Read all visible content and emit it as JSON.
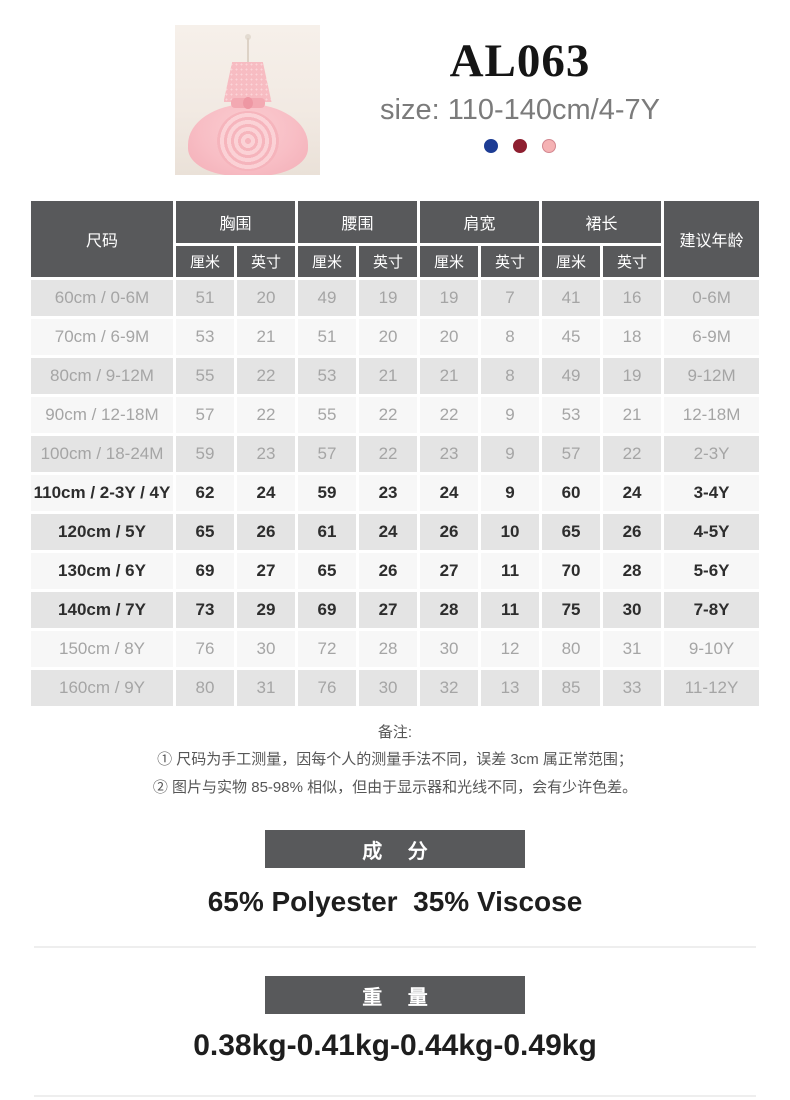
{
  "header": {
    "title": "AL063",
    "subtitle": "size: 110-140cm/4-7Y",
    "product_image_alt": "pink rose flower-girl dress on mannequin",
    "color_dots": [
      {
        "name": "navy-blue",
        "hex": "#1d3c94",
        "border": "#1d3c94"
      },
      {
        "name": "dark-red",
        "hex": "#8e1f30",
        "border": "#8e1f30"
      },
      {
        "name": "pink",
        "hex": "#f5b2b4",
        "border": "#d3868f"
      }
    ]
  },
  "size_table": {
    "col_size": "尺码",
    "groups": [
      "胸围",
      "腰围",
      "肩宽",
      "裙长"
    ],
    "unit_cm": "厘米",
    "unit_inch": "英寸",
    "col_age": "建议年龄",
    "rows": [
      {
        "size": "60cm / 0-6M",
        "values": [
          51,
          20,
          49,
          19,
          19,
          7,
          41,
          16
        ],
        "age": "0-6M",
        "highlight": false
      },
      {
        "size": "70cm / 6-9M",
        "values": [
          53,
          21,
          51,
          20,
          20,
          8,
          45,
          18
        ],
        "age": "6-9M",
        "highlight": false
      },
      {
        "size": "80cm / 9-12M",
        "values": [
          55,
          22,
          53,
          21,
          21,
          8,
          49,
          19
        ],
        "age": "9-12M",
        "highlight": false
      },
      {
        "size": "90cm / 12-18M",
        "values": [
          57,
          22,
          55,
          22,
          22,
          9,
          53,
          21
        ],
        "age": "12-18M",
        "highlight": false
      },
      {
        "size": "100cm / 18-24M",
        "values": [
          59,
          23,
          57,
          22,
          23,
          9,
          57,
          22
        ],
        "age": "2-3Y",
        "highlight": false
      },
      {
        "size": "110cm / 2-3Y / 4Y",
        "values": [
          62,
          24,
          59,
          23,
          24,
          9,
          60,
          24
        ],
        "age": "3-4Y",
        "highlight": true
      },
      {
        "size": "120cm / 5Y",
        "values": [
          65,
          26,
          61,
          24,
          26,
          10,
          65,
          26
        ],
        "age": "4-5Y",
        "highlight": true
      },
      {
        "size": "130cm / 6Y",
        "values": [
          69,
          27,
          65,
          26,
          27,
          11,
          70,
          28
        ],
        "age": "5-6Y",
        "highlight": true
      },
      {
        "size": "140cm / 7Y",
        "values": [
          73,
          29,
          69,
          27,
          28,
          11,
          75,
          30
        ],
        "age": "7-8Y",
        "highlight": true
      },
      {
        "size": "150cm / 8Y",
        "values": [
          76,
          30,
          72,
          28,
          30,
          12,
          80,
          31
        ],
        "age": "9-10Y",
        "highlight": false
      },
      {
        "size": "160cm / 9Y",
        "values": [
          80,
          31,
          76,
          30,
          32,
          13,
          85,
          33
        ],
        "age": "11-12Y",
        "highlight": false
      }
    ]
  },
  "notes": {
    "title": "备注:",
    "line1": "① 尺码为手工测量，因每个人的测量手法不同，误差 3cm 属正常范围；",
    "line2": "② 图片与实物 85-98% 相似，但由于显示器和光线不同，会有少许色差。"
  },
  "composition": {
    "label": "成 分",
    "value": "65% Polyester  35% Viscose"
  },
  "weight": {
    "label": "重 量",
    "value": "0.38kg-0.41kg-0.44kg-0.49kg"
  },
  "colors": {
    "table_header_bg": "#58595b",
    "row_gray_bg": "#e4e4e4",
    "row_white_bg": "#f7f7f7",
    "muted_text": "#a5a5a5",
    "highlight_text": "#2d2d2d",
    "section_box_bg": "#58595b"
  }
}
